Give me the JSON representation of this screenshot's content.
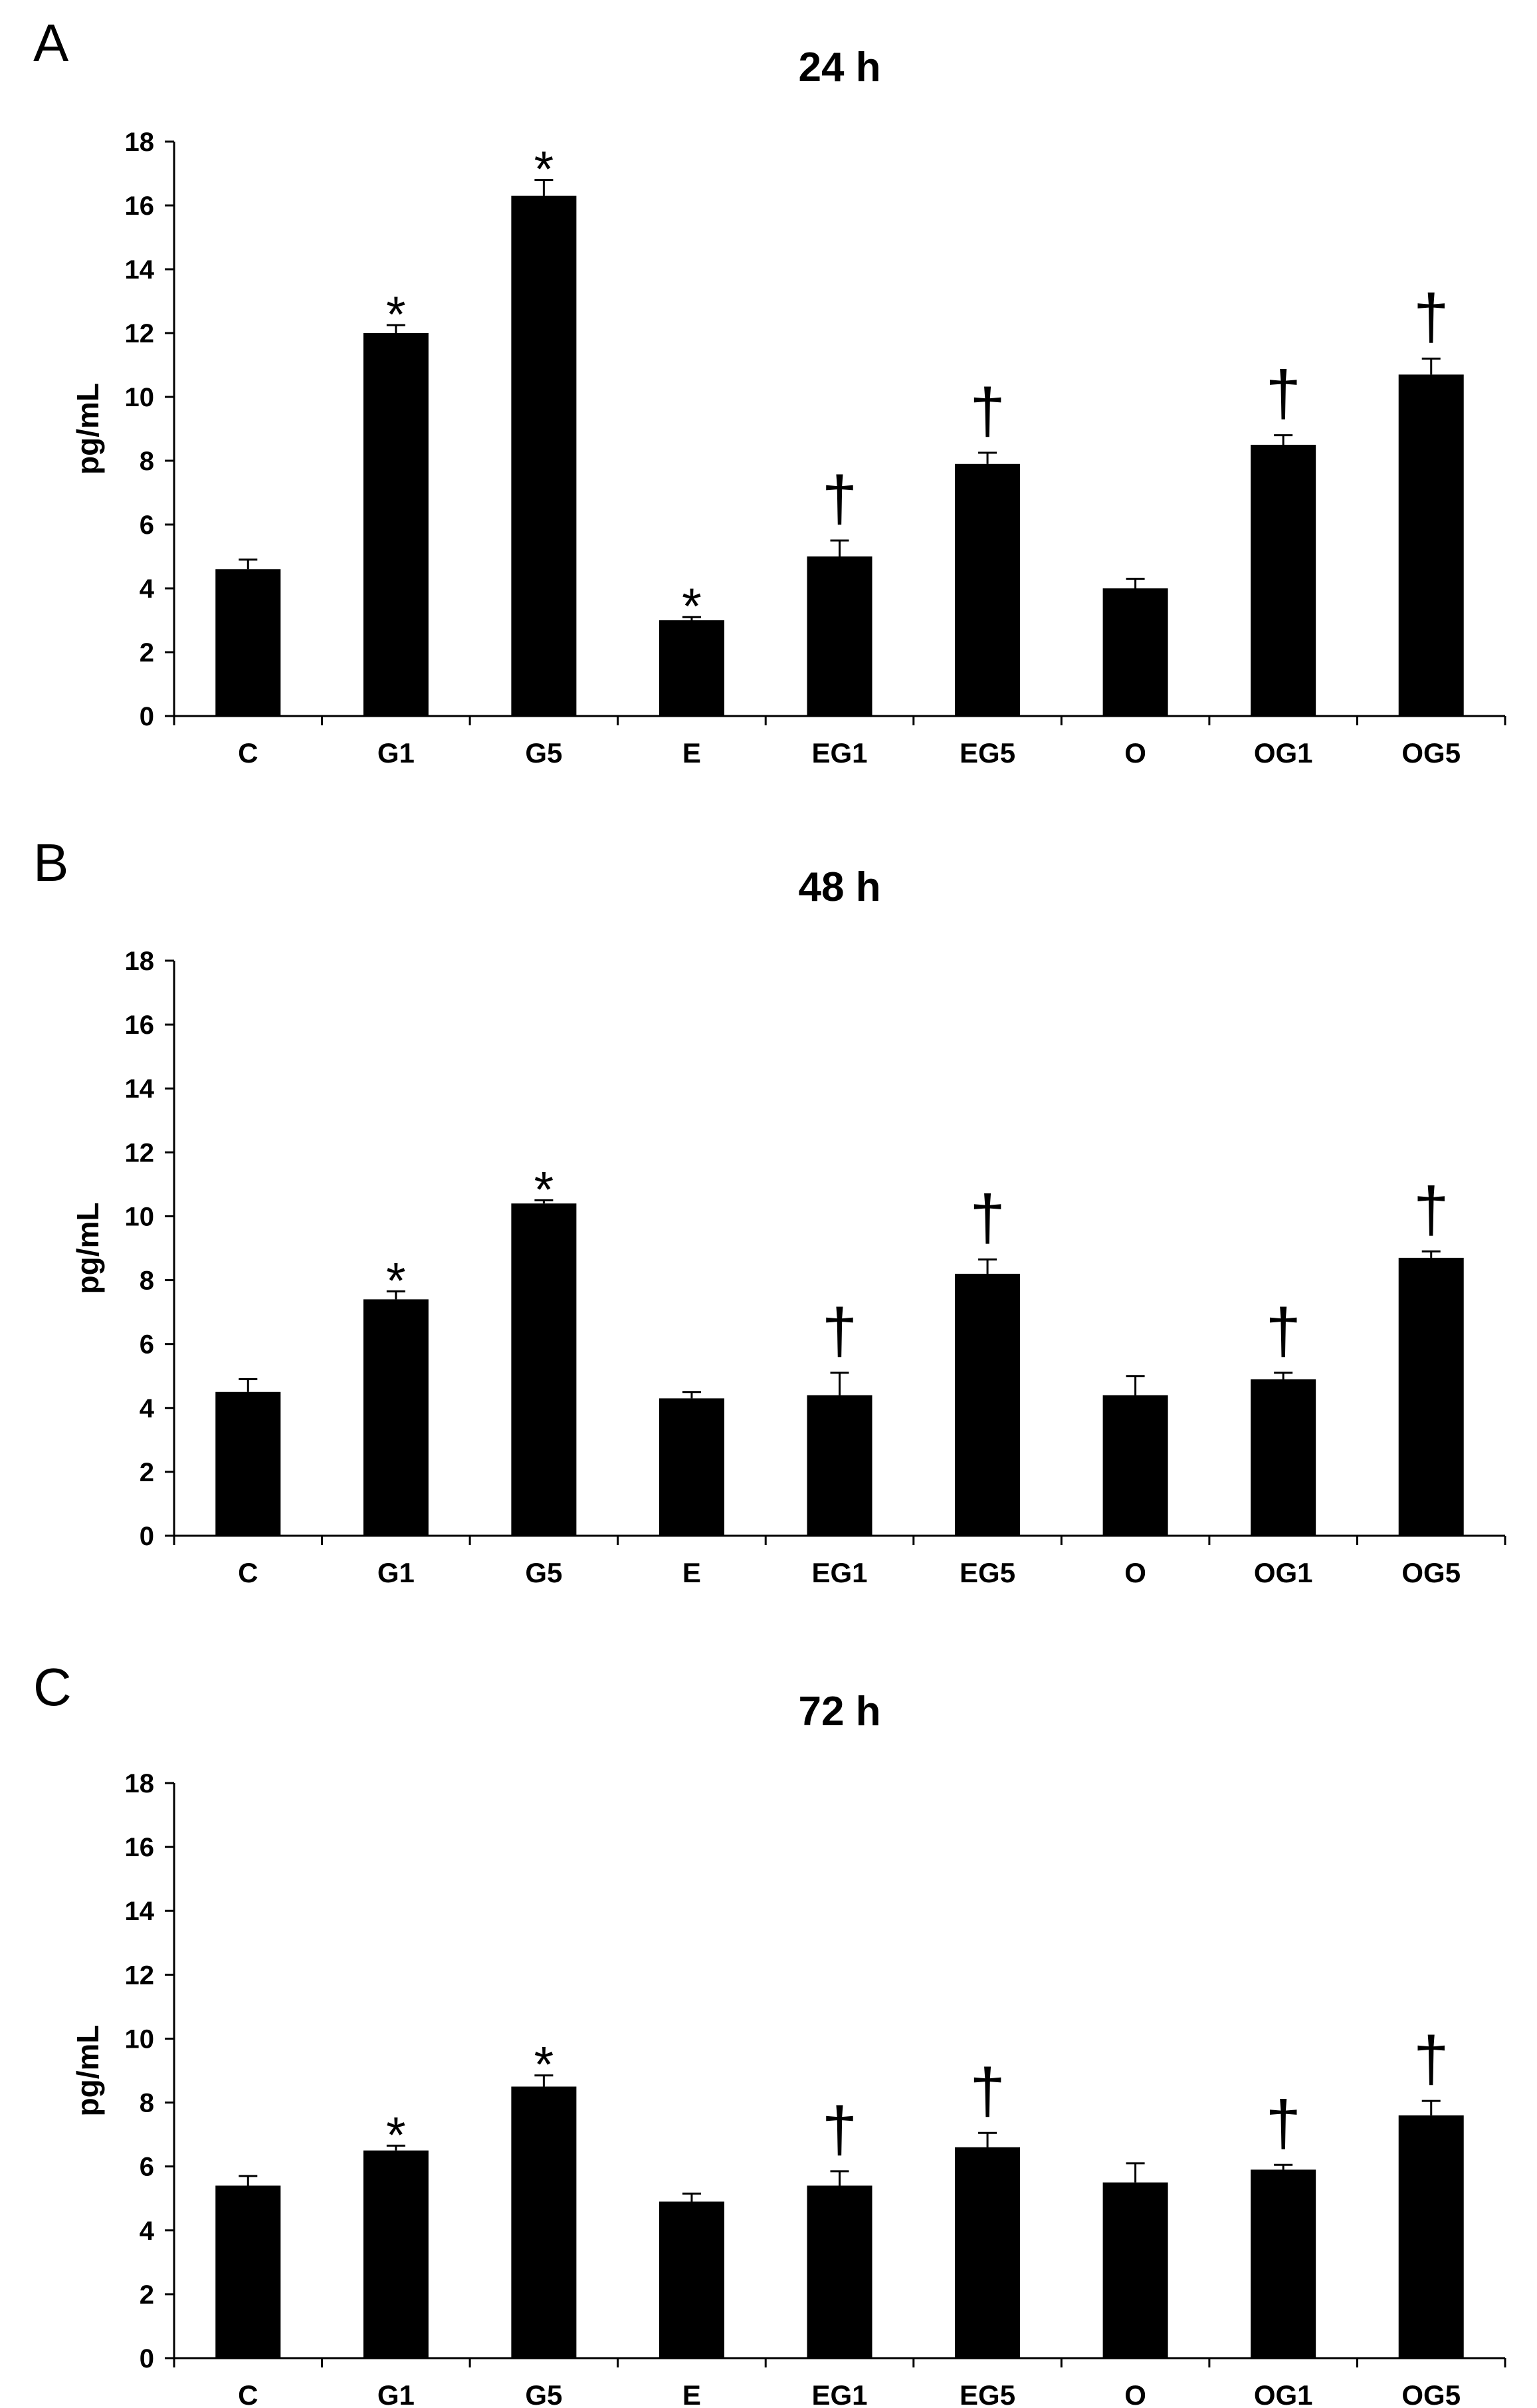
{
  "chart_data": [
    {
      "type": "bar",
      "panel": "A",
      "title": "24 h",
      "xlabel": "",
      "ylabel": "pg/mL",
      "ylim": [
        0,
        18
      ],
      "yticks": [
        0,
        2,
        4,
        6,
        8,
        10,
        12,
        14,
        16,
        18
      ],
      "categories": [
        "C",
        "G1",
        "G5",
        "E",
        "EG1",
        "EG5",
        "O",
        "OG1",
        "OG5"
      ],
      "values": [
        4.6,
        12.0,
        16.3,
        3.0,
        5.0,
        7.9,
        4.0,
        8.5,
        10.7
      ],
      "errors": [
        0.3,
        0.25,
        0.5,
        0.1,
        0.5,
        0.35,
        0.3,
        0.3,
        0.5
      ],
      "annotations": [
        "",
        "*",
        "*",
        "*",
        "†",
        "†",
        "",
        "†",
        "†"
      ]
    },
    {
      "type": "bar",
      "panel": "B",
      "title": "48 h",
      "xlabel": "",
      "ylabel": "pg/mL",
      "ylim": [
        0,
        18
      ],
      "yticks": [
        0,
        2,
        4,
        6,
        8,
        10,
        12,
        14,
        16,
        18
      ],
      "categories": [
        "C",
        "G1",
        "G5",
        "E",
        "EG1",
        "EG5",
        "O",
        "OG1",
        "OG5"
      ],
      "values": [
        4.5,
        7.4,
        10.4,
        4.3,
        4.4,
        8.2,
        4.4,
        4.9,
        8.7
      ],
      "errors": [
        0.4,
        0.25,
        0.1,
        0.2,
        0.7,
        0.45,
        0.6,
        0.2,
        0.2
      ],
      "annotations": [
        "",
        "*",
        "*",
        "",
        "†",
        "†",
        "",
        "†",
        "†"
      ]
    },
    {
      "type": "bar",
      "panel": "C",
      "title": "72 h",
      "xlabel": "",
      "ylabel": "pg/mL",
      "ylim": [
        0,
        18
      ],
      "yticks": [
        0,
        2,
        4,
        6,
        8,
        10,
        12,
        14,
        16,
        18
      ],
      "categories": [
        "C",
        "G1",
        "G5",
        "E",
        "EG1",
        "EG5",
        "O",
        "OG1",
        "OG5"
      ],
      "values": [
        5.4,
        6.5,
        8.5,
        4.9,
        5.4,
        6.6,
        5.5,
        5.9,
        7.6
      ],
      "errors": [
        0.3,
        0.15,
        0.35,
        0.25,
        0.45,
        0.45,
        0.6,
        0.15,
        0.45
      ],
      "annotations": [
        "",
        "*",
        "*",
        "",
        "†",
        "†",
        "",
        "†",
        "†"
      ]
    }
  ],
  "colors": {
    "bar": "#000000",
    "axis": "#000000",
    "background": "#ffffff"
  }
}
